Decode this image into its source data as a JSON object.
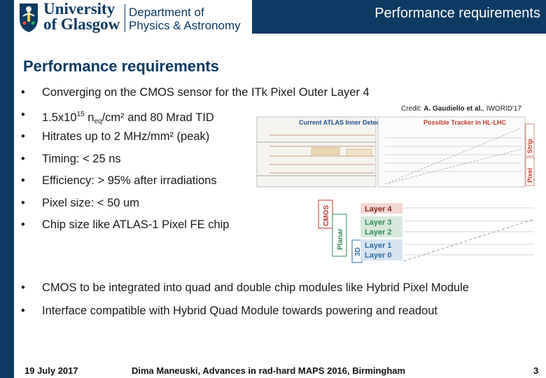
{
  "header": {
    "university_line1": "University",
    "university_line2": "of Glasgow",
    "department_line1": "Department of",
    "department_line2": "Physics & Astronomy",
    "banner_title": "Performance requirements"
  },
  "slide": {
    "title": "Performance requirements",
    "bullets_top": [
      {
        "text": "Converging on the CMOS sensor for the ITk Pixel Outer Layer 4"
      },
      {
        "pre": "1.5x10",
        "sup": "15",
        "mid": " n",
        "sub": "eq",
        "post": "/cm² and 80 Mrad TID"
      },
      {
        "text": "Hitrates up to 2 MHz/mm² (peak)"
      },
      {
        "text": "Timing: < 25 ns"
      },
      {
        "text": "Efficiency: > 95% after irradiations"
      },
      {
        "text": "Pixel size: < 50 um"
      },
      {
        "text": "Chip size like ATLAS-1 Pixel FE chip"
      }
    ],
    "bullets_bottom": [
      "CMOS to be integrated into quad and double chip modules like Hybrid Pixel Module",
      "Interface compatible with Hybrid Quad Module towards powering and readout"
    ],
    "bullet_glyph": "•"
  },
  "figure": {
    "credit_prefix": "Credit: ",
    "credit_author": "A. Gaudiello et al.",
    "credit_suffix": ", IWORID'17",
    "left_caption": "Current ATLAS Inner Detector",
    "right_caption": "Possible Tracker in HL-LHC",
    "strip_label": "Strip",
    "pixel_label": "Pixel",
    "cmos_label": "CMOS",
    "planar_label": "Planar",
    "threed_label": "3D",
    "layers": [
      "Layer 4",
      "Layer 3",
      "Layer 2",
      "Layer 1",
      "Layer 0"
    ],
    "colors": {
      "cmos_red": "#c0392b",
      "planar_green": "#2e8b57",
      "threed_blue": "#2e6da4",
      "caption_blue": "#1f4e8c",
      "caption_red": "#c0392b"
    }
  },
  "footer": {
    "date": "19 July 2017",
    "center": "Dima Maneuski, Advances in rad-hard MAPS 2016, Birmingham",
    "page": "3"
  }
}
